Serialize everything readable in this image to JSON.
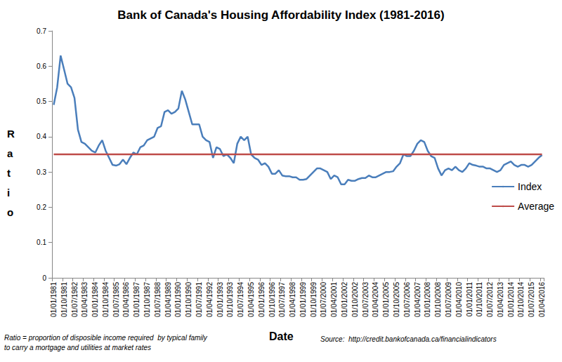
{
  "chart_data": {
    "type": "line",
    "title": "Bank of Canada's Housing Affordability Index (1981-2016)",
    "x_label": "Date",
    "y_label": "Ratio",
    "note": [
      "Ratio = proportion of disposible income required  by typical family",
      "to carry a mortgage and utilities at market rates"
    ],
    "source": "Source:  http://credit.bankofcanada.ca/financialindicators",
    "categories": [
      "01/01/1981",
      null,
      null,
      "01/10/1981",
      null,
      null,
      "01/07/1982",
      null,
      null,
      "01/04/1983",
      null,
      null,
      "01/01/1984",
      null,
      null,
      "01/10/1984",
      null,
      null,
      "01/07/1985",
      null,
      null,
      "01/04/1986",
      null,
      null,
      "01/01/1987",
      null,
      null,
      "01/10/1987",
      null,
      null,
      "01/07/1988",
      null,
      null,
      "01/04/1989",
      null,
      null,
      "01/01/1990",
      null,
      null,
      "01/10/1990",
      null,
      null,
      "01/07/1991",
      null,
      null,
      "01/04/1992",
      null,
      null,
      "01/01/1993",
      null,
      null,
      "01/10/1993",
      null,
      null,
      "01/07/1994",
      null,
      null,
      "01/04/1995",
      null,
      null,
      "01/01/1996",
      null,
      null,
      "01/10/1996",
      null,
      null,
      "01/07/1997",
      null,
      null,
      "01/04/1998",
      null,
      null,
      "01/01/1999",
      null,
      null,
      "01/10/1999",
      null,
      null,
      "01/07/2000",
      null,
      null,
      "01/04/2001",
      null,
      null,
      "01/01/2002",
      null,
      null,
      "01/10/2002",
      null,
      null,
      "01/07/2003",
      null,
      null,
      "01/04/2004",
      null,
      null,
      "01/01/2005",
      null,
      null,
      "01/10/2005",
      null,
      null,
      "01/07/2006",
      null,
      null,
      "01/04/2007",
      null,
      null,
      "01/01/2008",
      null,
      null,
      "01/10/2008",
      null,
      null,
      "01/07/2009",
      null,
      null,
      "01/04/2010",
      null,
      null,
      "01/01/2011",
      null,
      null,
      "01/10/2011",
      null,
      null,
      "01/07/2012",
      null,
      null,
      "01/04/2013",
      null,
      null,
      "01/01/2014",
      null,
      null,
      "01/10/2014",
      null,
      null,
      "01/07/2015",
      null,
      null,
      "01/04/2016"
    ],
    "series": [
      {
        "name": "Index",
        "color": "#4a7ebb",
        "values": [
          0.49,
          0.54,
          0.63,
          0.59,
          0.55,
          0.54,
          0.51,
          0.42,
          0.385,
          0.38,
          0.37,
          0.36,
          0.355,
          0.375,
          0.39,
          0.36,
          0.34,
          0.32,
          0.318,
          0.322,
          0.335,
          0.322,
          0.34,
          0.355,
          0.35,
          0.37,
          0.375,
          0.39,
          0.395,
          0.4,
          0.425,
          0.43,
          0.47,
          0.475,
          0.465,
          0.47,
          0.48,
          0.53,
          0.505,
          0.47,
          0.435,
          0.435,
          0.435,
          0.4,
          0.39,
          0.385,
          0.34,
          0.37,
          0.365,
          0.345,
          0.35,
          0.34,
          0.325,
          0.38,
          0.4,
          0.39,
          0.4,
          0.35,
          0.34,
          0.335,
          0.32,
          0.325,
          0.315,
          0.295,
          0.295,
          0.305,
          0.29,
          0.288,
          0.288,
          0.285,
          0.285,
          0.278,
          0.278,
          0.28,
          0.29,
          0.3,
          0.31,
          0.31,
          0.305,
          0.3,
          0.28,
          0.29,
          0.285,
          0.265,
          0.265,
          0.278,
          0.275,
          0.275,
          0.28,
          0.283,
          0.283,
          0.29,
          0.285,
          0.285,
          0.29,
          0.295,
          0.3,
          0.3,
          0.302,
          0.315,
          0.325,
          0.35,
          0.345,
          0.345,
          0.36,
          0.38,
          0.39,
          0.385,
          0.36,
          0.345,
          0.34,
          0.31,
          0.29,
          0.305,
          0.31,
          0.305,
          0.315,
          0.305,
          0.3,
          0.31,
          0.325,
          0.32,
          0.318,
          0.315,
          0.315,
          0.31,
          0.31,
          0.305,
          0.3,
          0.305,
          0.32,
          0.325,
          0.33,
          0.32,
          0.315,
          0.32,
          0.32,
          0.315,
          0.32,
          0.33,
          0.34,
          0.348
        ]
      },
      {
        "name": "Average",
        "color": "#be4b48",
        "values": [
          0.35,
          0.35,
          0.35,
          0.35,
          0.35,
          0.35,
          0.35,
          0.35,
          0.35,
          0.35,
          0.35,
          0.35,
          0.35,
          0.35,
          0.35,
          0.35,
          0.35,
          0.35,
          0.35,
          0.35,
          0.35,
          0.35,
          0.35,
          0.35,
          0.35,
          0.35,
          0.35,
          0.35,
          0.35,
          0.35,
          0.35,
          0.35,
          0.35,
          0.35,
          0.35,
          0.35,
          0.35,
          0.35,
          0.35,
          0.35,
          0.35,
          0.35,
          0.35,
          0.35,
          0.35,
          0.35,
          0.35,
          0.35,
          0.35,
          0.35,
          0.35,
          0.35,
          0.35,
          0.35,
          0.35,
          0.35,
          0.35,
          0.35,
          0.35,
          0.35,
          0.35,
          0.35,
          0.35,
          0.35,
          0.35,
          0.35,
          0.35,
          0.35,
          0.35,
          0.35,
          0.35,
          0.35,
          0.35,
          0.35,
          0.35,
          0.35,
          0.35,
          0.35,
          0.35,
          0.35,
          0.35,
          0.35,
          0.35,
          0.35,
          0.35,
          0.35,
          0.35,
          0.35,
          0.35,
          0.35,
          0.35,
          0.35,
          0.35,
          0.35,
          0.35,
          0.35,
          0.35,
          0.35,
          0.35,
          0.35,
          0.35,
          0.35,
          0.35,
          0.35,
          0.35,
          0.35,
          0.35,
          0.35,
          0.35,
          0.35,
          0.35,
          0.35,
          0.35,
          0.35,
          0.35,
          0.35,
          0.35,
          0.35,
          0.35,
          0.35,
          0.35,
          0.35,
          0.35,
          0.35,
          0.35,
          0.35,
          0.35,
          0.35,
          0.35,
          0.35,
          0.35,
          0.35,
          0.35,
          0.35,
          0.35,
          0.35,
          0.35,
          0.35,
          0.35,
          0.35,
          0.35,
          0.35
        ]
      }
    ],
    "ylim": [
      0,
      0.7
    ],
    "yticks": [
      0,
      0.1,
      0.2,
      0.3,
      0.4,
      0.5,
      0.6,
      0.7
    ],
    "grid": false,
    "legend": "right"
  }
}
